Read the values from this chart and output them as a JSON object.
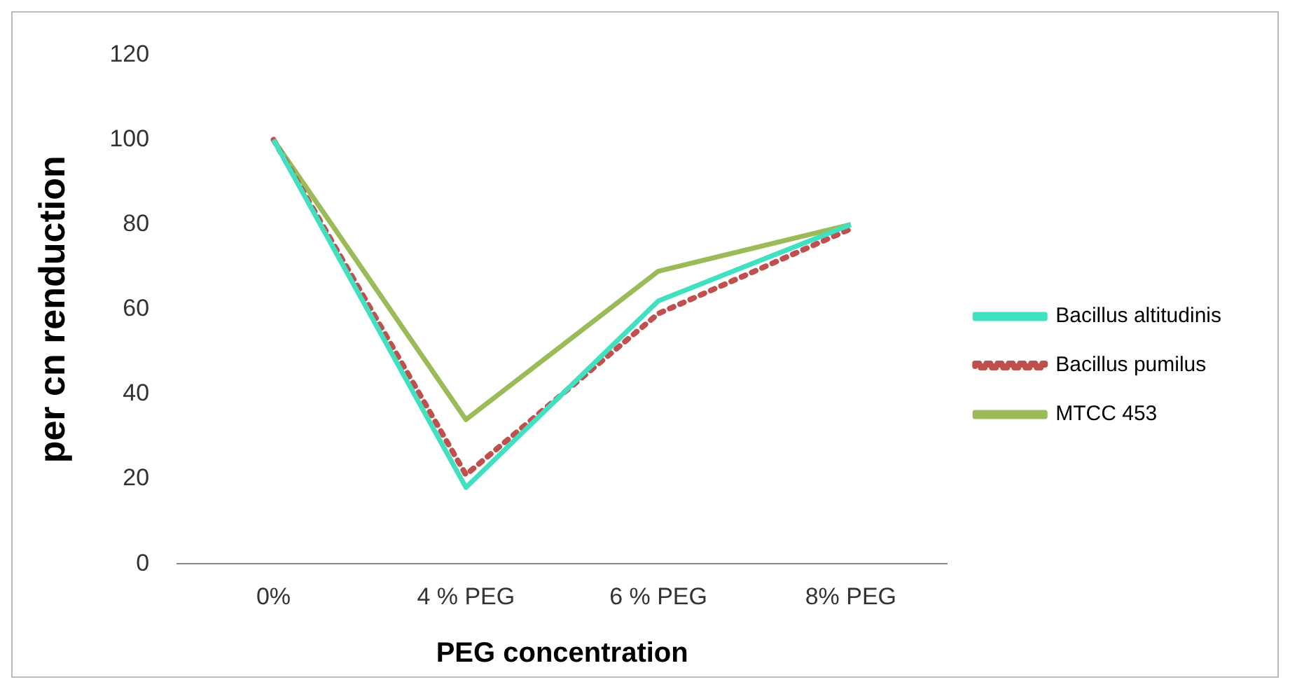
{
  "chart_data": {
    "type": "line",
    "xlabel": "PEG concentration",
    "ylabel": "per cn renduction",
    "categories": [
      "0%",
      "4 % PEG",
      "6 % PEG",
      "8% PEG"
    ],
    "series": [
      {
        "name": "Bacillus altitudinis",
        "color": "#40e0c0",
        "values": [
          100,
          18,
          62,
          80
        ]
      },
      {
        "name": "Bacillus pumilus",
        "color": "#c0504d",
        "values": [
          100,
          21,
          59,
          79
        ],
        "line_style": "dotted"
      },
      {
        "name": "MTCC 453",
        "color": "#9bbb59",
        "values": [
          100,
          34,
          69,
          80
        ]
      }
    ],
    "ylim": [
      0,
      120
    ],
    "yticks": [
      0,
      20,
      40,
      60,
      80,
      100,
      120
    ],
    "grid": false,
    "legend": "right",
    "marker": "none"
  }
}
